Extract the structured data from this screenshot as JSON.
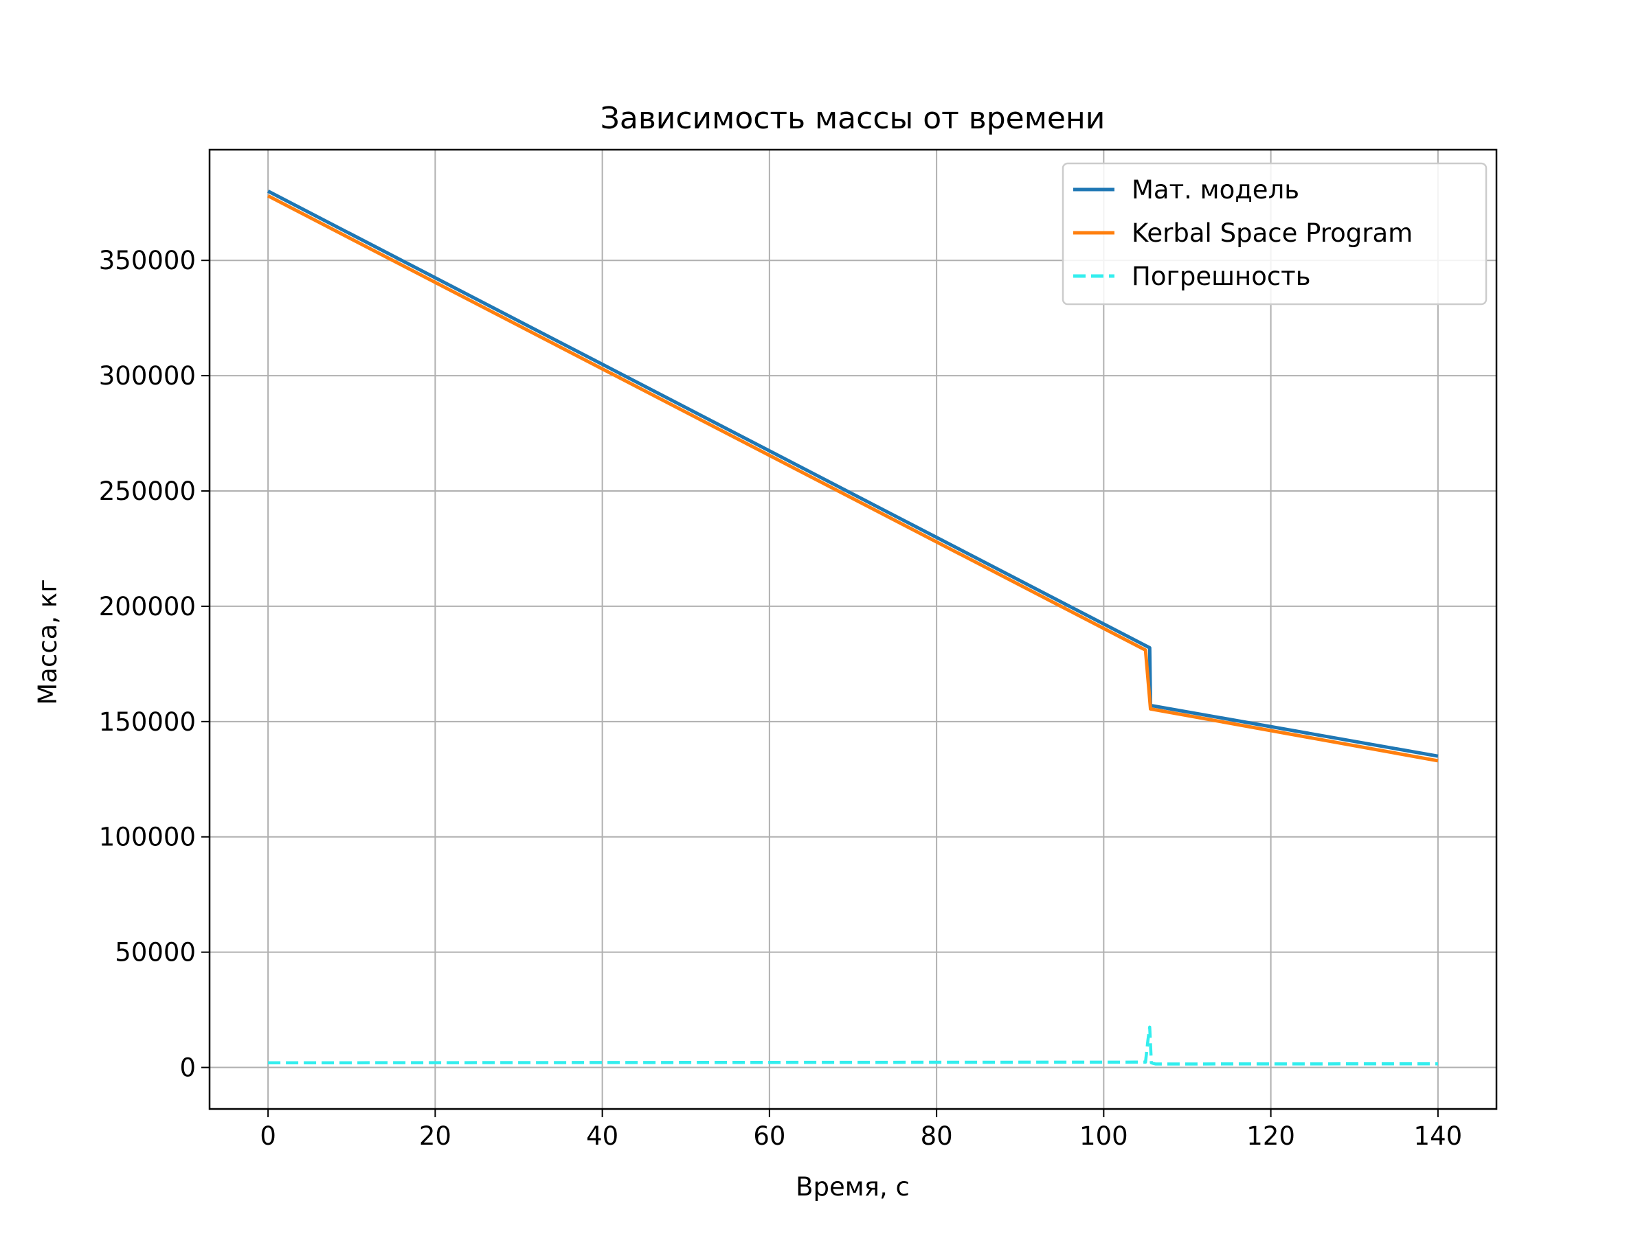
{
  "chart_data": {
    "type": "line",
    "title": "Зависимость массы от времени",
    "xlabel": "Время, с",
    "ylabel": "Масса, кг",
    "xlim": [
      -7,
      147
    ],
    "ylim": [
      -18000,
      398000
    ],
    "xticks": [
      0,
      20,
      40,
      60,
      80,
      100,
      120,
      140
    ],
    "xtick_labels": [
      "0",
      "20",
      "40",
      "60",
      "80",
      "100",
      "120",
      "140"
    ],
    "yticks": [
      0,
      50000,
      100000,
      150000,
      200000,
      250000,
      300000,
      350000
    ],
    "ytick_labels": [
      "0",
      "50000",
      "100000",
      "150000",
      "200000",
      "250000",
      "300000",
      "350000"
    ],
    "grid": true,
    "legend_position": "top-right",
    "series": [
      {
        "name": "Мат. модель",
        "color": "#1f77b4",
        "style": "solid",
        "points": [
          [
            0,
            380000
          ],
          [
            105.5,
            182000
          ],
          [
            105.6,
            157000
          ],
          [
            140,
            135000
          ]
        ]
      },
      {
        "name": "Kerbal Space Program",
        "color": "#ff7f0e",
        "style": "solid",
        "points": [
          [
            0,
            378000
          ],
          [
            105.0,
            181000
          ],
          [
            105.6,
            155500
          ],
          [
            140,
            133000
          ]
        ]
      },
      {
        "name": "Погрешность",
        "color": "#33eeee",
        "style": "dashed",
        "points": [
          [
            0,
            2000
          ],
          [
            60,
            2200
          ],
          [
            105.0,
            2300
          ],
          [
            105.3,
            12000
          ],
          [
            105.5,
            17500
          ],
          [
            105.7,
            2000
          ],
          [
            106.2,
            1500
          ],
          [
            140,
            1600
          ]
        ]
      }
    ]
  }
}
